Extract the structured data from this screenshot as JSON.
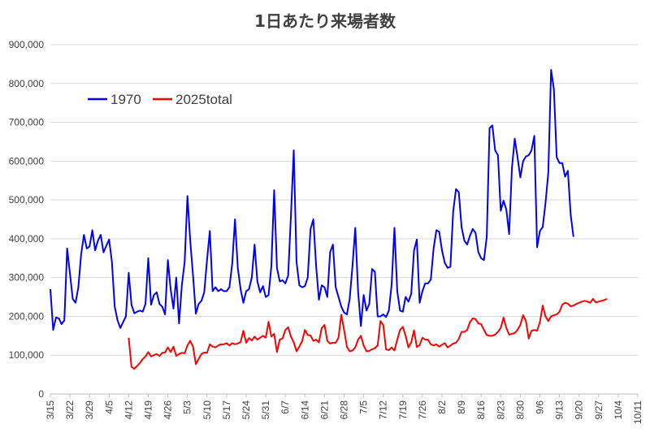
{
  "chart_data": {
    "type": "line",
    "title": "1日あたり来場者数",
    "xlabel": "",
    "ylabel": "",
    "ylim": [
      0,
      900000
    ],
    "yticks": [
      0,
      100000,
      200000,
      300000,
      400000,
      500000,
      600000,
      700000,
      800000,
      900000
    ],
    "ytick_labels": [
      "0",
      "100,000",
      "200,000",
      "300,000",
      "400,000",
      "500,000",
      "600,000",
      "700,000",
      "800,000",
      "900,000"
    ],
    "x_start": "3/15",
    "x_end": "10/11",
    "xtick_labels": [
      "3/15",
      "3/22",
      "3/29",
      "4/5",
      "4/12",
      "4/19",
      "4/26",
      "5/3",
      "5/10",
      "5/17",
      "5/24",
      "5/31",
      "6/7",
      "6/14",
      "6/21",
      "6/28",
      "7/5",
      "7/12",
      "7/19",
      "7/26",
      "8/2",
      "8/9",
      "8/16",
      "8/23",
      "8/30",
      "9/6",
      "9/13",
      "9/20",
      "9/27",
      "10/4",
      "10/11"
    ],
    "legend_position": "top-left",
    "grid": true,
    "series": [
      {
        "name": "1970",
        "color": "#0000ff",
        "start_day": 0,
        "values": [
          270000,
          165000,
          197000,
          195000,
          180000,
          190000,
          375000,
          310000,
          245000,
          235000,
          275000,
          360000,
          410000,
          375000,
          380000,
          422000,
          370000,
          395000,
          410000,
          365000,
          382000,
          398000,
          340000,
          225000,
          190000,
          170000,
          185000,
          200000,
          312000,
          230000,
          208000,
          212000,
          215000,
          212000,
          232000,
          350000,
          230000,
          255000,
          262000,
          232000,
          225000,
          205000,
          345000,
          270000,
          220000,
          300000,
          182000,
          280000,
          340000,
          510000,
          395000,
          305000,
          207000,
          232000,
          240000,
          262000,
          345000,
          420000,
          265000,
          275000,
          265000,
          270000,
          265000,
          265000,
          275000,
          335000,
          450000,
          325000,
          270000,
          235000,
          265000,
          270000,
          300000,
          385000,
          290000,
          262000,
          278000,
          250000,
          255000,
          330000,
          525000,
          325000,
          290000,
          293000,
          285000,
          305000,
          460000,
          628000,
          340000,
          280000,
          275000,
          278000,
          300000,
          425000,
          450000,
          330000,
          243000,
          280000,
          275000,
          250000,
          365000,
          385000,
          275000,
          250000,
          225000,
          210000,
          205000,
          245000,
          330000,
          428000,
          265000,
          175000,
          255000,
          215000,
          232000,
          322000,
          315000,
          200000,
          200000,
          205000,
          198000,
          215000,
          282000,
          428000,
          265000,
          215000,
          212000,
          250000,
          238000,
          258000,
          370000,
          398000,
          235000,
          265000,
          285000,
          285000,
          295000,
          375000,
          422000,
          418000,
          370000,
          338000,
          325000,
          328000,
          470000,
          528000,
          520000,
          430000,
          395000,
          385000,
          408000,
          425000,
          415000,
          365000,
          350000,
          345000,
          405000,
          685000,
          692000,
          628000,
          615000,
          472000,
          498000,
          475000,
          412000,
          582000,
          658000,
          610000,
          558000,
          600000,
          612000,
          615000,
          628000,
          665000,
          378000,
          420000,
          430000,
          492000,
          570000,
          835000,
          785000,
          610000,
          595000,
          595000,
          560000,
          575000,
          462000,
          405000
        ]
      },
      {
        "name": "2025total",
        "color": "#ff0000",
        "start_day": 28,
        "values": [
          145000,
          70000,
          65000,
          72000,
          80000,
          90000,
          97000,
          108000,
          97000,
          100000,
          103000,
          98000,
          106000,
          107000,
          120000,
          108000,
          122000,
          98000,
          103000,
          106000,
          105000,
          125000,
          137000,
          122000,
          77000,
          90000,
          103000,
          107000,
          106000,
          128000,
          122000,
          120000,
          125000,
          128000,
          128000,
          131000,
          125000,
          131000,
          128000,
          130000,
          134000,
          163000,
          132000,
          144000,
          138000,
          148000,
          140000,
          145000,
          150000,
          145000,
          186000,
          148000,
          155000,
          108000,
          140000,
          143000,
          165000,
          172000,
          148000,
          133000,
          110000,
          122000,
          136000,
          165000,
          152000,
          151000,
          137000,
          140000,
          133000,
          170000,
          178000,
          137000,
          130000,
          132000,
          132000,
          145000,
          204000,
          165000,
          122000,
          110000,
          112000,
          120000,
          140000,
          150000,
          125000,
          110000,
          111000,
          115000,
          118000,
          125000,
          188000,
          178000,
          115000,
          113000,
          120000,
          112000,
          140000,
          165000,
          173000,
          150000,
          120000,
          133000,
          164000,
          121000,
          126000,
          145000,
          140000,
          140000,
          128000,
          125000,
          128000,
          122000,
          127000,
          131000,
          120000,
          125000,
          130000,
          132000,
          142000,
          160000,
          160000,
          165000,
          185000,
          195000,
          193000,
          182000,
          180000,
          165000,
          152000,
          150000,
          150000,
          153000,
          160000,
          170000,
          197000,
          170000,
          153000,
          155000,
          157000,
          165000,
          178000,
          203000,
          188000,
          143000,
          163000,
          165000,
          163000,
          185000,
          228000,
          200000,
          188000,
          200000,
          203000,
          205000,
          212000,
          230000,
          235000,
          233000,
          226000,
          228000,
          232000,
          235000,
          238000,
          240000,
          238000,
          235000,
          245000,
          236000,
          238000,
          240000,
          242000,
          245000
        ]
      }
    ]
  }
}
